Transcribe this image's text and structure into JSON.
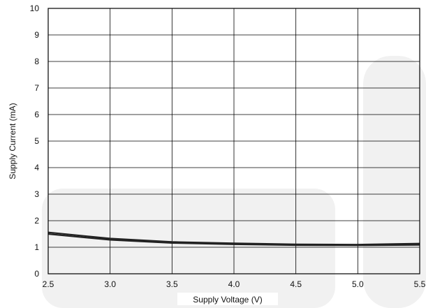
{
  "chart_data": {
    "type": "line",
    "title": "",
    "xlabel": "Supply Voltage (V)",
    "ylabel": "Supply Current (mA)",
    "xlim": [
      2.5,
      5.5
    ],
    "ylim": [
      0,
      10
    ],
    "x_ticks": [
      "2.5",
      "3.0",
      "3.5",
      "4.0",
      "4.5",
      "5.0",
      "5.5"
    ],
    "y_ticks": [
      "0",
      "1",
      "2",
      "3",
      "4",
      "5",
      "6",
      "7",
      "8",
      "9",
      "10"
    ],
    "grid": true,
    "legend": "none",
    "series": [
      {
        "x": [
          2.5,
          3.0,
          3.5,
          4.0,
          4.5,
          5.0,
          5.5
        ],
        "y": [
          1.56,
          1.33,
          1.2,
          1.15,
          1.11,
          1.1,
          1.14
        ]
      },
      {
        "x": [
          2.5,
          3.0,
          3.5,
          4.0,
          4.5,
          5.0,
          5.5
        ],
        "y": [
          1.5,
          1.28,
          1.16,
          1.11,
          1.08,
          1.07,
          1.09
        ]
      }
    ],
    "colors": {
      "line": "#222222",
      "grid": "#000000",
      "watermark": "#f1f1f1"
    }
  }
}
